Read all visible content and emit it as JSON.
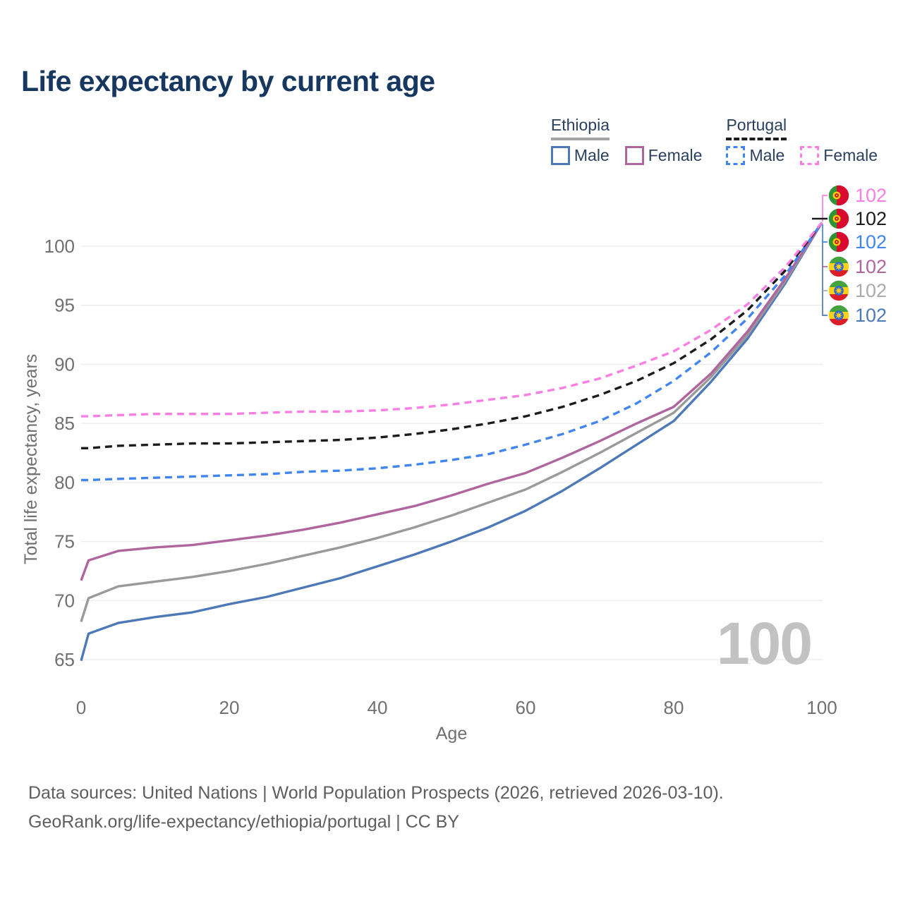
{
  "title": "Life expectancy by current age",
  "legend": {
    "groups": [
      {
        "country": "Ethiopia",
        "line_style": "solid",
        "underline_color": "#a3a3a3",
        "items": [
          {
            "label": "Male",
            "color": "#4e79b8"
          },
          {
            "label": "Female",
            "color": "#b0659f"
          }
        ]
      },
      {
        "country": "Portugal",
        "line_style": "dashed",
        "underline_color": "#1c1c1c",
        "items": [
          {
            "label": "Male",
            "color": "#4186f0"
          },
          {
            "label": "Female",
            "color": "#fb7ee2"
          }
        ]
      }
    ]
  },
  "watermark": {
    "value": "100"
  },
  "end_labels": [
    {
      "flag": "portugal",
      "value": "102",
      "color": "#fb7ee2",
      "series": "Portugal Female"
    },
    {
      "flag": "portugal",
      "value": "102",
      "color": "#1c1c1c",
      "series": "Portugal"
    },
    {
      "flag": "portugal",
      "value": "102",
      "color": "#4186f0",
      "series": "Portugal Male"
    },
    {
      "flag": "ethiopia",
      "value": "102",
      "color": "#b0659f",
      "series": "Ethiopia Female"
    },
    {
      "flag": "ethiopia",
      "value": "102",
      "color": "#ababab",
      "series": "Ethiopia"
    },
    {
      "flag": "ethiopia",
      "value": "102",
      "color": "#4e79b8",
      "series": "Ethiopia Male"
    }
  ],
  "footer": {
    "line1": "Data sources: United Nations | World Population Prospects (2026, retrieved 2026-03-10).",
    "line2": "GeoRank.org/life-expectancy/ethiopia/portugal | CC BY"
  },
  "chart_data": {
    "type": "line",
    "title": "Life expectancy by current age",
    "xlabel": "Age",
    "ylabel": "Total life expectancy, years",
    "x_ticks": [
      0,
      20,
      40,
      60,
      80,
      100
    ],
    "y_ticks": [
      65,
      70,
      75,
      80,
      85,
      90,
      95,
      100
    ],
    "xlim": [
      0,
      100
    ],
    "ylim": [
      63,
      104
    ],
    "grid": "horizontal",
    "legend_position": "top-right",
    "x": [
      0,
      1,
      5,
      10,
      15,
      20,
      25,
      30,
      35,
      40,
      45,
      50,
      55,
      60,
      65,
      70,
      75,
      80,
      85,
      90,
      95,
      100
    ],
    "series": [
      {
        "name": "Ethiopia Male",
        "country": "Ethiopia",
        "sex": "male",
        "style": "solid",
        "color": "#4e79b8",
        "values": [
          64.9,
          67.2,
          68.1,
          68.6,
          69.0,
          69.7,
          70.3,
          71.1,
          71.9,
          72.9,
          73.9,
          75.0,
          76.2,
          77.6,
          79.3,
          81.2,
          83.2,
          85.2,
          88.5,
          92.2,
          96.8,
          102
        ]
      },
      {
        "name": "Ethiopia",
        "country": "Ethiopia",
        "sex": "all",
        "style": "solid",
        "color": "#9a9a9a",
        "values": [
          68.2,
          70.2,
          71.2,
          71.6,
          72.0,
          72.5,
          73.1,
          73.8,
          74.5,
          75.3,
          76.2,
          77.2,
          78.3,
          79.4,
          80.9,
          82.5,
          84.2,
          85.9,
          88.9,
          92.5,
          97.0,
          102
        ]
      },
      {
        "name": "Ethiopia Female",
        "country": "Ethiopia",
        "sex": "female",
        "style": "solid",
        "color": "#b0659f",
        "values": [
          71.7,
          73.4,
          74.2,
          74.5,
          74.7,
          75.1,
          75.5,
          76.0,
          76.6,
          77.3,
          78.0,
          78.9,
          79.9,
          80.8,
          82.1,
          83.5,
          85.0,
          86.4,
          89.2,
          92.8,
          97.2,
          102
        ]
      },
      {
        "name": "Portugal Male",
        "country": "Portugal",
        "sex": "male",
        "style": "dashed",
        "color": "#4186f0",
        "values": [
          80.2,
          80.2,
          80.3,
          80.4,
          80.5,
          80.6,
          80.7,
          80.9,
          81.0,
          81.2,
          81.5,
          81.9,
          82.4,
          83.2,
          84.1,
          85.2,
          86.7,
          88.6,
          91.0,
          93.9,
          97.5,
          102
        ]
      },
      {
        "name": "Portugal",
        "country": "Portugal",
        "sex": "all",
        "style": "dashed",
        "color": "#1c1c1c",
        "values": [
          82.9,
          82.9,
          83.1,
          83.2,
          83.3,
          83.3,
          83.4,
          83.5,
          83.6,
          83.8,
          84.1,
          84.5,
          85.0,
          85.6,
          86.4,
          87.4,
          88.6,
          90.1,
          92.1,
          94.6,
          97.9,
          102
        ]
      },
      {
        "name": "Portugal Female",
        "country": "Portugal",
        "sex": "female",
        "style": "dashed",
        "color": "#fb7ee2",
        "values": [
          85.6,
          85.6,
          85.7,
          85.8,
          85.8,
          85.8,
          85.9,
          86.0,
          86.0,
          86.1,
          86.3,
          86.6,
          87.0,
          87.4,
          88.0,
          88.8,
          89.9,
          91.1,
          92.9,
          95.1,
          98.2,
          102
        ]
      }
    ]
  }
}
